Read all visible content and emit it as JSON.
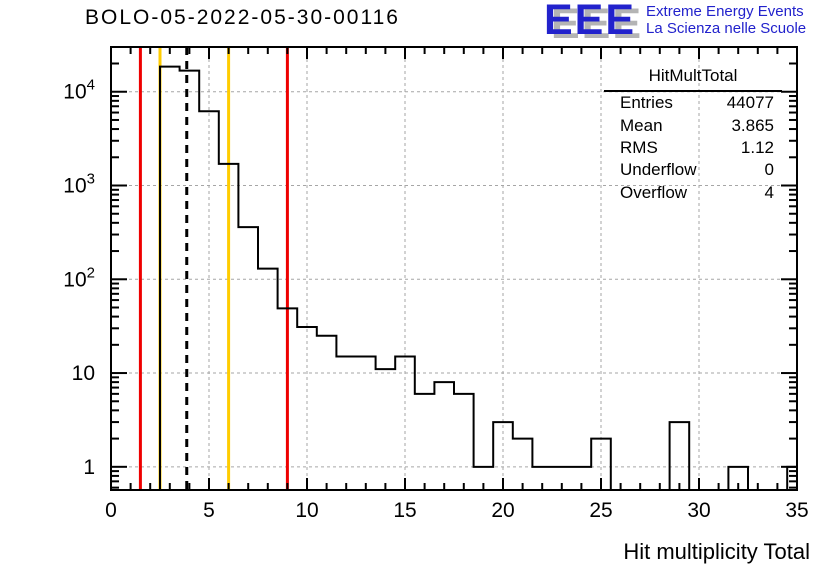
{
  "title": "BOLO-05-2022-05-30-00116",
  "logo": {
    "eee": "EEE",
    "line1": "Extreme Energy Events",
    "line2": "La Scienza nelle Scuole",
    "color": "#2222cc",
    "shadow_color": "#b4b4b4"
  },
  "stats": {
    "title": "HitMultTotal",
    "rows": [
      {
        "label": "Entries",
        "value": "44077"
      },
      {
        "label": "Mean",
        "value": "3.865"
      },
      {
        "label": "RMS",
        "value": "1.12"
      },
      {
        "label": "Underflow",
        "value": "0"
      },
      {
        "label": "Overflow",
        "value": "4"
      }
    ]
  },
  "chart_data": {
    "type": "bar",
    "subtype": "step-histogram-log-y",
    "title": "BOLO-05-2022-05-30-00116",
    "xlabel": "Hit multiplicity Total",
    "ylabel": "",
    "x_range": [
      0,
      35
    ],
    "y_range": [
      0.566,
      30000
    ],
    "y_scale": "log",
    "grid": true,
    "bin_width": 1,
    "bin_centers": [
      0,
      1,
      2,
      3,
      4,
      5,
      6,
      7,
      8,
      9,
      10,
      11,
      12,
      13,
      14,
      15,
      16,
      17,
      18,
      19,
      20,
      21,
      22,
      23,
      24,
      25,
      26,
      27,
      28,
      29,
      30,
      31,
      32,
      33,
      34,
      35
    ],
    "values": [
      0,
      0,
      0,
      18500,
      16800,
      6200,
      1700,
      360,
      130,
      49,
      31,
      25,
      15,
      15,
      11,
      15,
      6,
      8,
      6,
      1,
      3,
      2,
      1,
      1,
      1,
      2,
      0,
      0,
      0,
      3,
      0,
      0,
      1,
      0,
      0,
      1
    ],
    "x_ticks_major": [
      0,
      5,
      10,
      15,
      20,
      25,
      30,
      35
    ],
    "x_tick_labels": [
      "0",
      "5",
      "10",
      "15",
      "20",
      "25",
      "30",
      "35"
    ],
    "y_ticks_major": [
      1,
      10,
      100,
      1000,
      10000
    ],
    "y_tick_labels": [
      "1",
      "10",
      "10^2",
      "10^3",
      "10^4"
    ],
    "histogram_color": "#000000",
    "grid_color": "#a6a6a6",
    "vlines": [
      {
        "x": 1.5,
        "color": "#ee0000",
        "style": "solid"
      },
      {
        "x": 2.5,
        "color": "#ffcc00",
        "style": "solid"
      },
      {
        "x": 3.865,
        "color": "#000000",
        "style": "dashed"
      },
      {
        "x": 6,
        "color": "#ffcc00",
        "style": "solid"
      },
      {
        "x": 9,
        "color": "#ee0000",
        "style": "solid"
      }
    ]
  }
}
